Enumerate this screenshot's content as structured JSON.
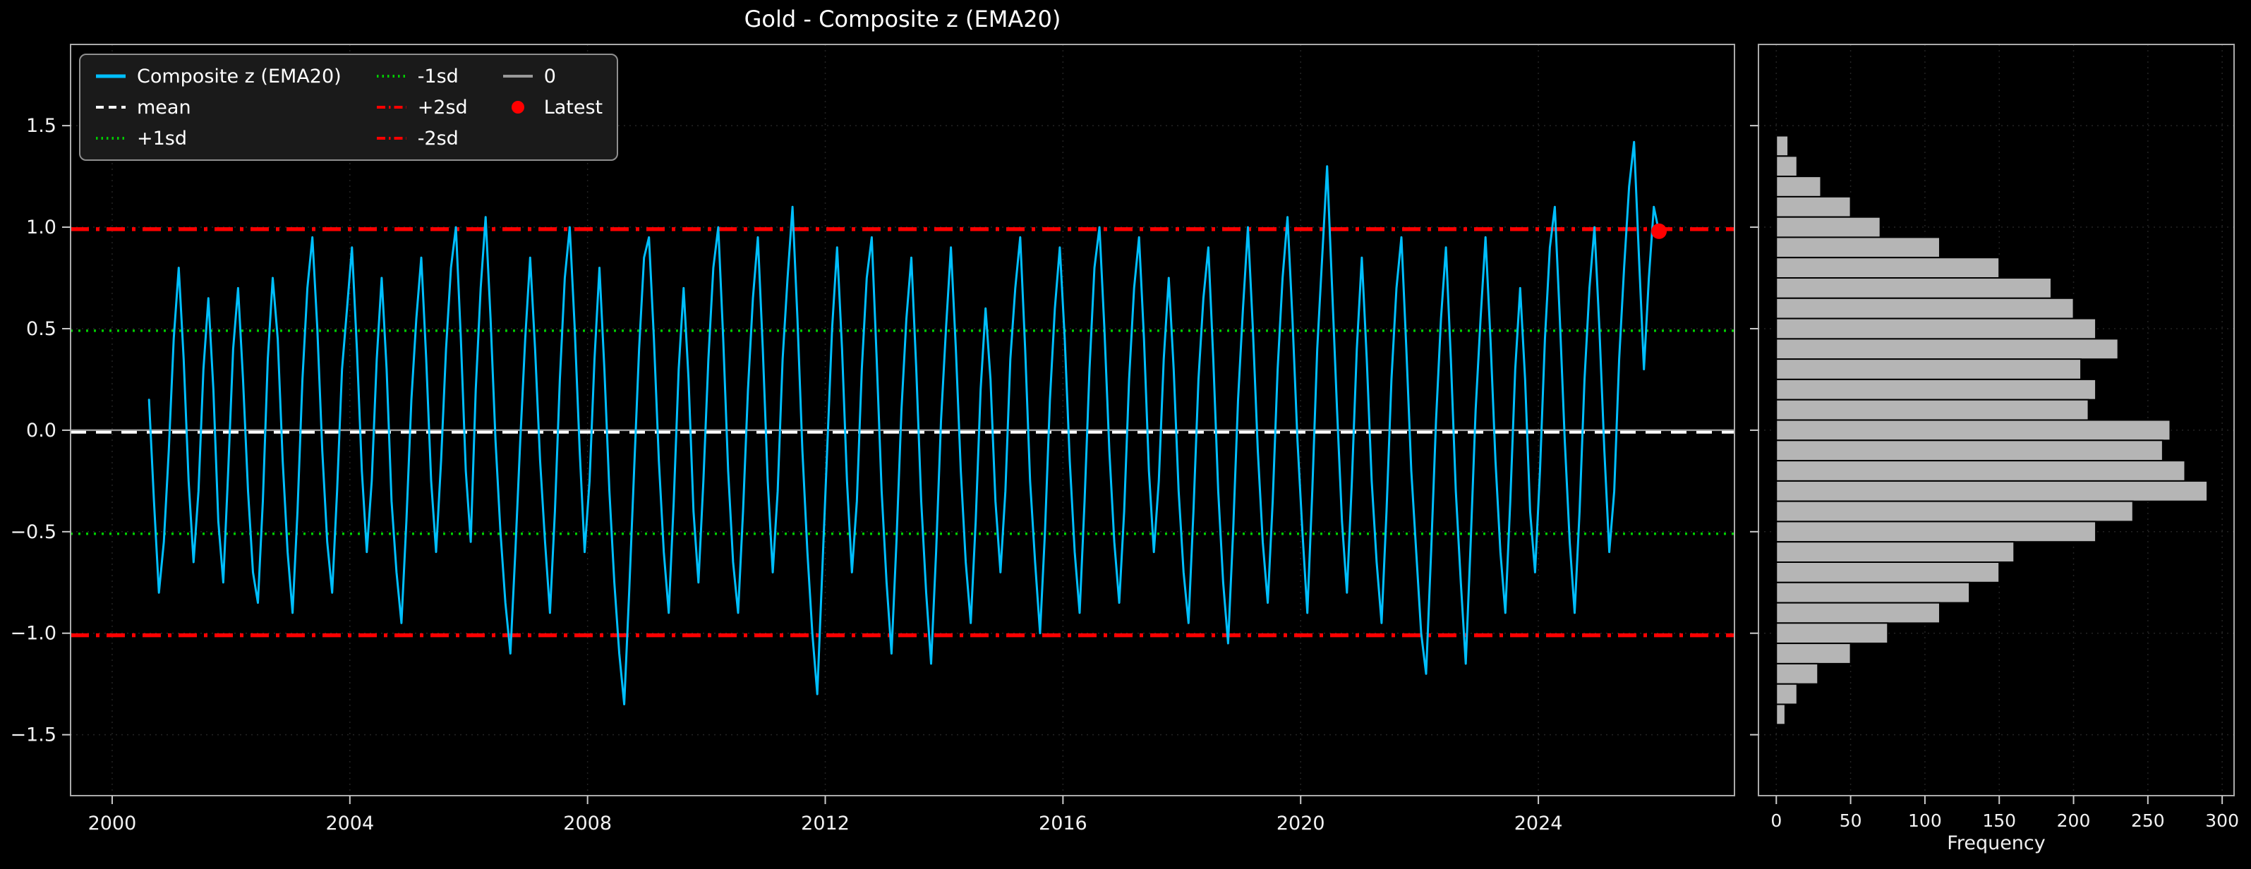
{
  "colors": {
    "background": "#000000",
    "series": "#00BFFF",
    "mean": "#ffffff",
    "sd1": "#00cc00",
    "sd2": "#ff0000",
    "zero": "#999999",
    "bars": "#b5b5b5",
    "frame": "#aaaaaa"
  },
  "chart_data": [
    {
      "type": "line",
      "title": "Gold - Composite z (EMA20)",
      "xlim": [
        1999.3,
        2027.3
      ],
      "ylim": [
        -1.8,
        1.9
      ],
      "xticks": [
        2000,
        2004,
        2008,
        2012,
        2016,
        2020,
        2024
      ],
      "xtick_labels": [
        "2000",
        "2004",
        "2008",
        "2012",
        "2016",
        "2020",
        "2024"
      ],
      "yticks": [
        1.5,
        1.0,
        0.5,
        0.0,
        -0.5,
        -1.0,
        -1.5
      ],
      "ytick_labels": [
        "1.5",
        "1.0",
        "0.5",
        "0.0",
        "−0.5",
        "−1.0",
        "−1.5"
      ],
      "grid": true,
      "series": {
        "name": "Composite z (EMA20)",
        "color": "#00BFFF",
        "x_start": 2000.62,
        "x_step": 0.0833,
        "values": [
          0.15,
          -0.35,
          -0.8,
          -0.55,
          -0.1,
          0.45,
          0.8,
          0.35,
          -0.25,
          -0.65,
          -0.3,
          0.3,
          0.65,
          0.2,
          -0.45,
          -0.75,
          -0.2,
          0.4,
          0.7,
          0.25,
          -0.3,
          -0.7,
          -0.85,
          -0.35,
          0.35,
          0.75,
          0.45,
          -0.15,
          -0.6,
          -0.9,
          -0.4,
          0.25,
          0.7,
          0.95,
          0.5,
          -0.1,
          -0.55,
          -0.8,
          -0.3,
          0.3,
          0.6,
          0.9,
          0.4,
          -0.2,
          -0.6,
          -0.25,
          0.35,
          0.75,
          0.3,
          -0.35,
          -0.7,
          -0.95,
          -0.45,
          0.15,
          0.55,
          0.85,
          0.35,
          -0.25,
          -0.6,
          -0.15,
          0.4,
          0.8,
          1.0,
          0.45,
          -0.2,
          -0.55,
          0.2,
          0.7,
          1.05,
          0.55,
          -0.05,
          -0.5,
          -0.85,
          -1.1,
          -0.6,
          -0.05,
          0.45,
          0.85,
          0.4,
          -0.15,
          -0.55,
          -0.9,
          -0.4,
          0.25,
          0.75,
          1.0,
          0.5,
          -0.1,
          -0.6,
          -0.25,
          0.35,
          0.8,
          0.3,
          -0.3,
          -0.75,
          -1.1,
          -1.35,
          -0.8,
          -0.2,
          0.4,
          0.85,
          0.95,
          0.45,
          -0.15,
          -0.6,
          -0.9,
          -0.35,
          0.3,
          0.7,
          0.25,
          -0.4,
          -0.75,
          -0.25,
          0.35,
          0.8,
          1.0,
          0.45,
          -0.2,
          -0.65,
          -0.9,
          -0.4,
          0.2,
          0.65,
          0.95,
          0.4,
          -0.25,
          -0.7,
          -0.3,
          0.35,
          0.75,
          1.1,
          0.55,
          -0.1,
          -0.6,
          -1.0,
          -1.3,
          -0.7,
          -0.1,
          0.5,
          0.9,
          0.4,
          -0.25,
          -0.7,
          -0.35,
          0.3,
          0.75,
          0.95,
          0.35,
          -0.3,
          -0.75,
          -1.1,
          -0.55,
          0.1,
          0.55,
          0.85,
          0.3,
          -0.35,
          -0.8,
          -1.15,
          -0.6,
          0.05,
          0.5,
          0.9,
          0.4,
          -0.2,
          -0.65,
          -0.95,
          -0.45,
          0.2,
          0.6,
          0.25,
          -0.35,
          -0.7,
          -0.3,
          0.35,
          0.7,
          0.95,
          0.4,
          -0.25,
          -0.65,
          -1.0,
          -0.5,
          0.15,
          0.6,
          0.9,
          0.45,
          -0.15,
          -0.6,
          -0.9,
          -0.35,
          0.3,
          0.8,
          1.0,
          0.5,
          -0.1,
          -0.55,
          -0.85,
          -0.4,
          0.25,
          0.7,
          0.95,
          0.45,
          -0.2,
          -0.6,
          -0.25,
          0.35,
          0.75,
          0.3,
          -0.3,
          -0.7,
          -0.95,
          -0.4,
          0.25,
          0.65,
          0.9,
          0.35,
          -0.3,
          -0.75,
          -1.05,
          -0.5,
          0.15,
          0.6,
          1.0,
          0.5,
          -0.1,
          -0.55,
          -0.85,
          -0.35,
          0.3,
          0.75,
          1.05,
          0.55,
          -0.05,
          -0.5,
          -0.9,
          -0.3,
          0.4,
          0.85,
          1.3,
          0.7,
          0.1,
          -0.45,
          -0.8,
          -0.25,
          0.4,
          0.85,
          0.35,
          -0.25,
          -0.65,
          -0.95,
          -0.4,
          0.25,
          0.7,
          0.95,
          0.4,
          -0.2,
          -0.6,
          -1.0,
          -1.2,
          -0.6,
          0.05,
          0.55,
          0.9,
          0.35,
          -0.3,
          -0.75,
          -1.15,
          -0.55,
          0.1,
          0.55,
          0.95,
          0.45,
          -0.15,
          -0.6,
          -0.9,
          -0.35,
          0.3,
          0.7,
          0.25,
          -0.4,
          -0.7,
          -0.2,
          0.45,
          0.9,
          1.1,
          0.55,
          -0.05,
          -0.55,
          -0.9,
          -0.4,
          0.25,
          0.7,
          1.0,
          0.5,
          -0.1,
          -0.6,
          -0.3,
          0.35,
          0.8,
          1.2,
          1.42,
          0.85,
          0.3,
          0.75,
          1.1,
          0.98
        ]
      },
      "reference_lines": [
        {
          "name": "zero",
          "label": "0",
          "y": 0.0,
          "color": "#999999",
          "style": "solid"
        },
        {
          "name": "plus1sd",
          "label": "+1sd",
          "y": 0.49,
          "color": "#00cc00",
          "style": "dotted"
        },
        {
          "name": "minus1sd",
          "label": "-1sd",
          "y": -0.51,
          "color": "#00cc00",
          "style": "dotted"
        },
        {
          "name": "plus2sd",
          "label": "+2sd",
          "y": 0.99,
          "color": "#ff0000",
          "style": "dashdot"
        },
        {
          "name": "minus2sd",
          "label": "-2sd",
          "y": -1.01,
          "color": "#ff0000",
          "style": "dashdot"
        },
        {
          "name": "mean",
          "label": "mean",
          "y": -0.01,
          "color": "#ffffff",
          "style": "dashed"
        }
      ],
      "latest": {
        "x": 2026.03,
        "y": 0.98,
        "color": "#ff0000",
        "label": "Latest"
      },
      "legend": {
        "ncol": 3,
        "rows_per_col": 3,
        "items": [
          {
            "label": "Composite z (EMA20)",
            "swatch": "line",
            "color": "#00BFFF",
            "style": "solid"
          },
          {
            "label": "mean",
            "swatch": "line",
            "color": "#ffffff",
            "style": "dashed"
          },
          {
            "label": "+1sd",
            "swatch": "line",
            "color": "#00cc00",
            "style": "dotted"
          },
          {
            "label": "-1sd",
            "swatch": "line",
            "color": "#00cc00",
            "style": "dotted"
          },
          {
            "label": "+2sd",
            "swatch": "line",
            "color": "#ff0000",
            "style": "dashdot"
          },
          {
            "label": "-2sd",
            "swatch": "line",
            "color": "#ff0000",
            "style": "dashdot"
          },
          {
            "label": "0",
            "swatch": "line",
            "color": "#999999",
            "style": "solid"
          },
          {
            "label": "Latest",
            "swatch": "marker",
            "color": "#ff0000"
          }
        ]
      }
    },
    {
      "type": "bar",
      "orientation": "horizontal",
      "xlabel": "Frequency",
      "xlim": [
        -12,
        308
      ],
      "xticks": [
        0,
        50,
        100,
        150,
        200,
        250,
        300
      ],
      "xtick_labels": [
        "0",
        "50",
        "100",
        "150",
        "200",
        "250",
        "300"
      ],
      "ylim": [
        -1.8,
        1.9
      ],
      "bar_color": "#b5b5b5",
      "bar_edge_color": "#000000",
      "bin_top": 1.45,
      "bin_height": 0.1,
      "frequencies_top_to_bottom": [
        8,
        14,
        30,
        50,
        70,
        110,
        150,
        185,
        200,
        215,
        230,
        205,
        215,
        210,
        265,
        260,
        275,
        290,
        240,
        215,
        160,
        150,
        130,
        110,
        75,
        50,
        28,
        14,
        6
      ]
    }
  ]
}
